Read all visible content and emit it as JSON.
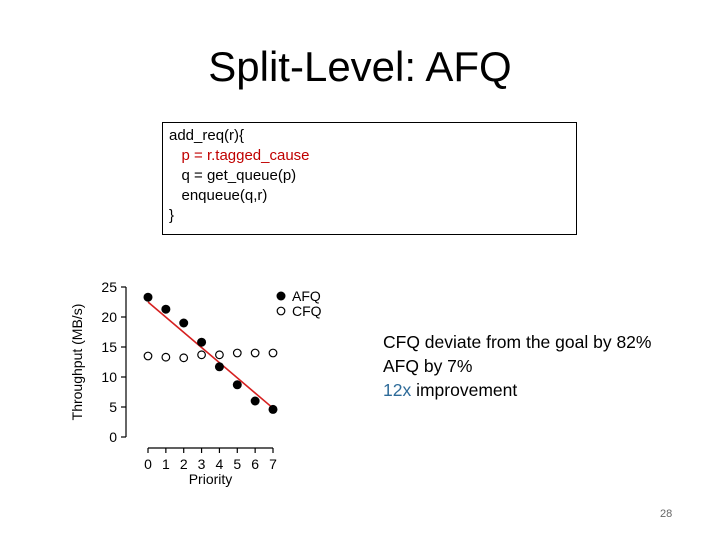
{
  "slide": {
    "title": "Split-Level: AFQ",
    "page_number": "28"
  },
  "code": {
    "lines": [
      "add_req(r){",
      "   p = r.tagged_cause",
      "   q = get_queue(p)",
      "   enqueue(q,r)",
      "}"
    ]
  },
  "notes": {
    "line1": "CFQ deviate from the goal by 82%",
    "line2": "AFQ by 7%",
    "line3_highlight": "12x",
    "line3_rest": " improvement"
  },
  "colors": {
    "highlight_code": "#c00000",
    "highlight_text": "#2e6b99",
    "trend_line": "#d62020"
  },
  "chart_data": {
    "type": "scatter",
    "xlabel": "Priority",
    "ylabel": "Throughput (MB/s)",
    "xlim": [
      0,
      7
    ],
    "ylim": [
      0,
      25
    ],
    "xticks": [
      "0",
      "1",
      "2",
      "3",
      "4",
      "5",
      "6",
      "7"
    ],
    "yticks": [
      "0",
      "5",
      "10",
      "15",
      "20",
      "25"
    ],
    "series": [
      {
        "name": "AFQ",
        "marker": "filled",
        "x": [
          0,
          1,
          2,
          3,
          4,
          5,
          6,
          7
        ],
        "y": [
          23.3,
          21.3,
          19.0,
          15.8,
          11.7,
          8.7,
          6.0,
          4.6
        ]
      },
      {
        "name": "CFQ",
        "marker": "open",
        "x": [
          0,
          1,
          2,
          3,
          4,
          5,
          6,
          7
        ],
        "y": [
          13.5,
          13.3,
          13.2,
          13.7,
          13.7,
          14.0,
          14.0,
          14.0
        ]
      }
    ],
    "trend_line": {
      "x": [
        0,
        7
      ],
      "y": [
        22.5,
        4.8
      ]
    },
    "legend_position": "top-right"
  }
}
